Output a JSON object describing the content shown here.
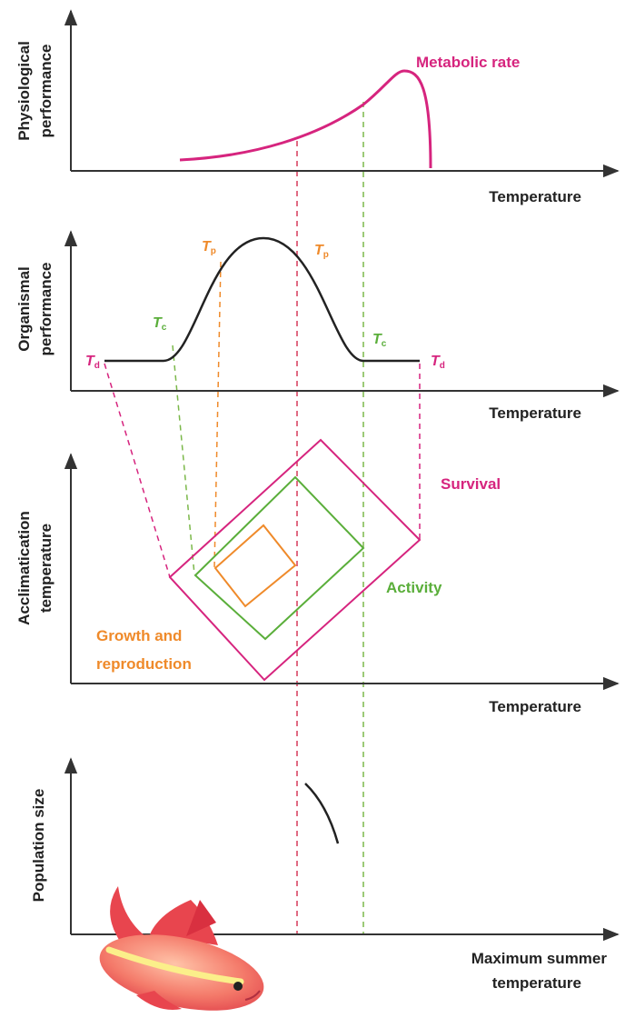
{
  "panels": [
    {
      "y_label": [
        "Physiological",
        "performance"
      ],
      "x_label": [
        "Temperature"
      ],
      "curve_label": "Metabolic rate"
    },
    {
      "y_label": [
        "Organismal",
        "performance"
      ],
      "x_label": [
        "Temperature"
      ],
      "thresholds": [
        {
          "symbol": "T",
          "sub": "d"
        },
        {
          "symbol": "T",
          "sub": "c"
        },
        {
          "symbol": "T",
          "sub": "p"
        },
        {
          "symbol": "T",
          "sub": "p"
        },
        {
          "symbol": "T",
          "sub": "c"
        },
        {
          "symbol": "T",
          "sub": "d"
        }
      ]
    },
    {
      "y_label": [
        "Acclimatication",
        "temperature"
      ],
      "x_label": [
        "Temperature"
      ],
      "regions": [
        "Survival",
        "Activity"
      ],
      "growth_label": [
        "Growth and",
        "reproduction"
      ]
    },
    {
      "y_label": [
        "Population size"
      ],
      "x_label": [
        "Maximum summer",
        "temperature"
      ]
    }
  ]
}
